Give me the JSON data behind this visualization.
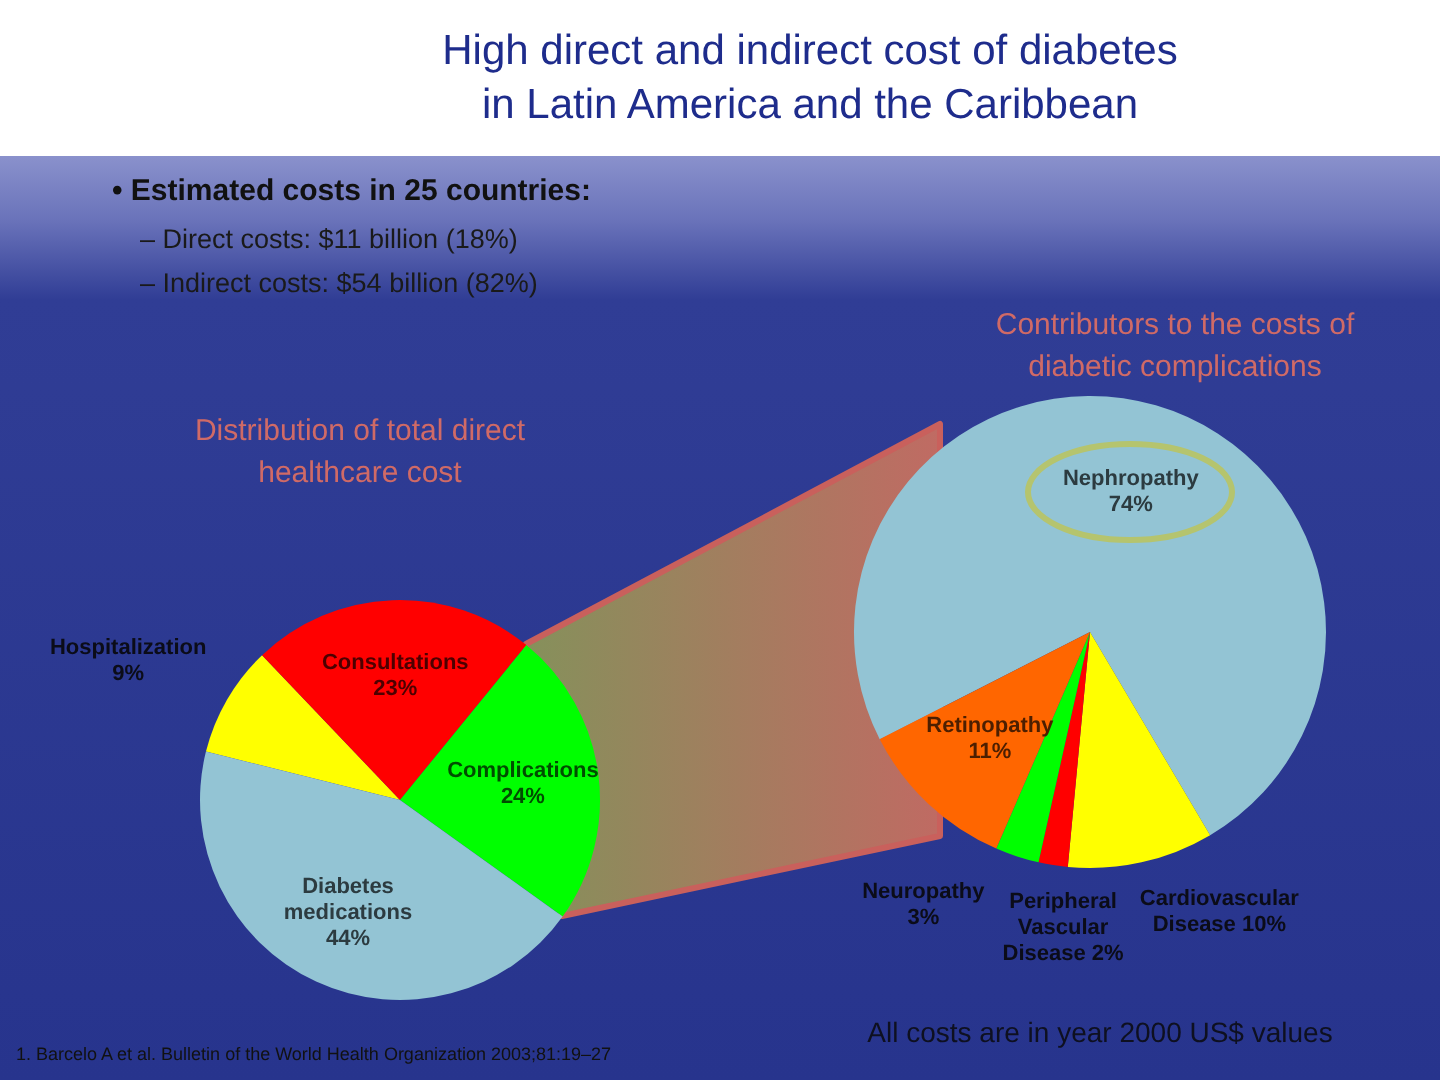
{
  "chart_data": [
    {
      "type": "other",
      "title": "High direct and indirect cost of diabetes in Latin America and the Caribbean",
      "annotations": [
        "• Estimated costs in 25 countries:",
        "– Direct costs: $11 billion (18%)",
        "– Indirect costs: $54 billion (82%)",
        "1. Barcelo A et al. Bulletin of the World Health Organization 2003;81:19–27"
      ]
    },
    {
      "type": "pie",
      "title": "Distribution of total direct healthcare cost",
      "categories": [
        "Hospitalization",
        "Consultations",
        "Complications",
        "Diabetes medications"
      ],
      "values": [
        9,
        23,
        24,
        44
      ],
      "value_labels": [
        "9%",
        "23%",
        "24%",
        "44%"
      ],
      "colors": [
        "#ffff00",
        "#ff0000",
        "#00ff00",
        "#93c4d4"
      ]
    },
    {
      "type": "pie",
      "title": "Contributors to the costs of diabetic complications",
      "categories": [
        "Nephropathy",
        "Cardiovascular Disease",
        "Peripheral Vascular Disease",
        "Neuropathy",
        "Retinopathy"
      ],
      "values": [
        74,
        10,
        2,
        3,
        11
      ],
      "value_labels": [
        "74%",
        "10%",
        "2%",
        "3%",
        "11%"
      ],
      "colors": [
        "#93c4d4",
        "#ffff00",
        "#ff0000",
        "#00ff00",
        "#ff6600"
      ],
      "annotations": [
        "All costs are in year 2000 US$ values"
      ]
    }
  ]
}
